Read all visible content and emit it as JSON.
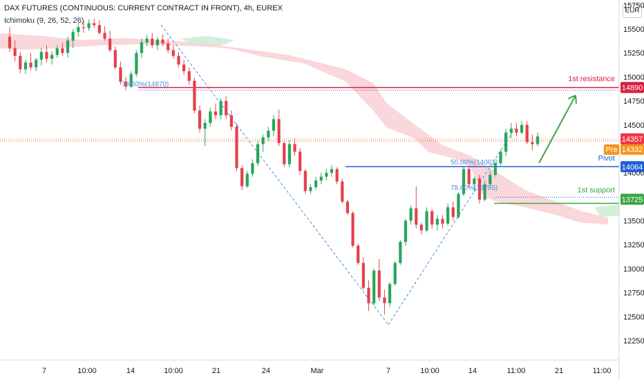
{
  "header": {
    "title": "DAX FUTURES (CONTINUOUS: CURRENT CONTRACT IN FRONT), 4h, EUREX",
    "indicator": "Ichimoku (9, 26, 52, 26)",
    "currency": "EUR"
  },
  "labels": {
    "resistance": "1st resistance",
    "pivot": "Pivot",
    "support": "1st support",
    "fib_top": "78.60%(14870)",
    "fib_mid": "50.00%(14061)",
    "fib_low": "78.60%(13785)",
    "pre": "Pre"
  },
  "colors": {
    "up": "#26a65b",
    "down": "#e5404c",
    "resistance": "#d81e3f",
    "pivot": "#1f5fd6",
    "support": "#3ca545",
    "dashed": "#4a8fe0",
    "cloud_red": "#f8c9cd",
    "cloud_green": "#c8ebd0",
    "price": "#f23645",
    "pre": "#f7931a"
  },
  "chart_data": {
    "type": "candlestick",
    "y_axis": {
      "ticks": [
        12250,
        12500,
        12750,
        13000,
        13250,
        13500,
        13750,
        14000,
        14250,
        14500,
        14750,
        15000,
        15250,
        15500,
        15750
      ],
      "ylim": [
        12130,
        15800
      ]
    },
    "x_axis": {
      "ticks": [
        "7",
        "10:00",
        "14",
        "10:00",
        "21",
        "24",
        "Mar",
        "7",
        "10:00",
        "14",
        "11:00",
        "21",
        "11:00"
      ]
    },
    "levels": [
      {
        "name": "1st resistance",
        "value": 14890,
        "label": "14890"
      },
      {
        "name": "Pivot",
        "value": 14064,
        "label": "14064"
      },
      {
        "name": "1st support",
        "value": 13725,
        "label": "13725"
      }
    ],
    "price_badges": [
      {
        "value": 14357,
        "label": "14357"
      },
      {
        "value": 14332,
        "label": "14332"
      }
    ],
    "fibonacci": [
      {
        "label": "78.60%(14870)",
        "value": 14870
      },
      {
        "label": "50.00%(14061)",
        "value": 14061
      },
      {
        "label": "78.60%(13785)",
        "value": 13785
      }
    ],
    "candles": [
      [
        15420,
        15520,
        15260,
        15300
      ],
      [
        15300,
        15380,
        15160,
        15220
      ],
      [
        15220,
        15260,
        15040,
        15080
      ],
      [
        15080,
        15180,
        15030,
        15150
      ],
      [
        15150,
        15250,
        15070,
        15100
      ],
      [
        15100,
        15200,
        15060,
        15180
      ],
      [
        15180,
        15300,
        15120,
        15260
      ],
      [
        15260,
        15330,
        15150,
        15190
      ],
      [
        15190,
        15270,
        15130,
        15230
      ],
      [
        15230,
        15330,
        15200,
        15300
      ],
      [
        15300,
        15360,
        15220,
        15250
      ],
      [
        15250,
        15420,
        15200,
        15380
      ],
      [
        15380,
        15500,
        15300,
        15470
      ],
      [
        15470,
        15560,
        15420,
        15520
      ],
      [
        15520,
        15580,
        15460,
        15510
      ],
      [
        15510,
        15600,
        15480,
        15560
      ],
      [
        15560,
        15610,
        15510,
        15540
      ],
      [
        15540,
        15590,
        15440,
        15460
      ],
      [
        15460,
        15530,
        15380,
        15400
      ],
      [
        15400,
        15480,
        15260,
        15280
      ],
      [
        15280,
        15320,
        15080,
        15100
      ],
      [
        15100,
        15160,
        14920,
        14950
      ],
      [
        14950,
        15000,
        14860,
        14900
      ],
      [
        14900,
        15060,
        14880,
        15030
      ],
      [
        15030,
        15280,
        15000,
        15250
      ],
      [
        15250,
        15400,
        15200,
        15360
      ],
      [
        15360,
        15440,
        15320,
        15400
      ],
      [
        15400,
        15460,
        15300,
        15330
      ],
      [
        15330,
        15420,
        15280,
        15390
      ],
      [
        15390,
        15440,
        15320,
        15350
      ],
      [
        15350,
        15400,
        15250,
        15280
      ],
      [
        15280,
        15330,
        15190,
        15220
      ],
      [
        15220,
        15260,
        15100,
        15130
      ],
      [
        15130,
        15180,
        15020,
        15060
      ],
      [
        15060,
        15100,
        14920,
        14960
      ],
      [
        14960,
        14990,
        14620,
        14650
      ],
      [
        14650,
        14700,
        14420,
        14460
      ],
      [
        14460,
        14560,
        14280,
        14520
      ],
      [
        14520,
        14680,
        14480,
        14640
      ],
      [
        14640,
        14720,
        14560,
        14600
      ],
      [
        14600,
        14780,
        14560,
        14750
      ],
      [
        14750,
        14800,
        14560,
        14600
      ],
      [
        14600,
        14650,
        14440,
        14480
      ],
      [
        14480,
        14520,
        14020,
        14050
      ],
      [
        14050,
        14080,
        13820,
        13860
      ],
      [
        13860,
        14020,
        13840,
        13990
      ],
      [
        13990,
        14140,
        13960,
        14100
      ],
      [
        14100,
        14330,
        14070,
        14300
      ],
      [
        14300,
        14400,
        14220,
        14370
      ],
      [
        14370,
        14480,
        14330,
        14440
      ],
      [
        14440,
        14600,
        14380,
        14560
      ],
      [
        14560,
        14660,
        14280,
        14310
      ],
      [
        14310,
        14330,
        14060,
        14090
      ],
      [
        14090,
        14340,
        14060,
        14300
      ],
      [
        14300,
        14360,
        14180,
        14220
      ],
      [
        14220,
        14260,
        13980,
        14020
      ],
      [
        14020,
        14040,
        13780,
        13810
      ],
      [
        13810,
        13880,
        13780,
        13850
      ],
      [
        13850,
        13960,
        13820,
        13920
      ],
      [
        13920,
        14000,
        13880,
        13960
      ],
      [
        13960,
        14040,
        13920,
        14000
      ],
      [
        14000,
        14080,
        13960,
        14040
      ],
      [
        14040,
        14060,
        13880,
        13910
      ],
      [
        13910,
        13940,
        13680,
        13700
      ],
      [
        13700,
        13720,
        13560,
        13580
      ],
      [
        13580,
        13600,
        13220,
        13240
      ],
      [
        13240,
        13260,
        13040,
        13060
      ],
      [
        13060,
        13120,
        12780,
        12800
      ],
      [
        12800,
        12880,
        12560,
        12640
      ],
      [
        12640,
        13000,
        12620,
        12980
      ],
      [
        12980,
        13100,
        12660,
        12700
      ],
      [
        12700,
        12780,
        12520,
        12640
      ],
      [
        12640,
        12860,
        12600,
        12840
      ],
      [
        12840,
        13080,
        12820,
        13060
      ],
      [
        13060,
        13300,
        13040,
        13280
      ],
      [
        13280,
        13520,
        13240,
        13500
      ],
      [
        13500,
        13660,
        13460,
        13630
      ],
      [
        13630,
        13860,
        13420,
        13460
      ],
      [
        13460,
        13480,
        13360,
        13400
      ],
      [
        13400,
        13640,
        13380,
        13600
      ],
      [
        13600,
        13620,
        13420,
        13460
      ],
      [
        13460,
        13560,
        13400,
        13520
      ],
      [
        13520,
        13560,
        13420,
        13470
      ],
      [
        13470,
        13680,
        13450,
        13640
      ],
      [
        13640,
        13700,
        13500,
        13540
      ],
      [
        13540,
        13800,
        13520,
        13780
      ],
      [
        13780,
        14060,
        13760,
        14040
      ],
      [
        14040,
        14080,
        13840,
        13880
      ],
      [
        13880,
        13960,
        13800,
        13940
      ],
      [
        13940,
        13980,
        13680,
        13720
      ],
      [
        13720,
        13920,
        13700,
        13880
      ],
      [
        13880,
        14020,
        13860,
        13980
      ],
      [
        13980,
        14120,
        13960,
        14100
      ],
      [
        14100,
        14240,
        14080,
        14220
      ],
      [
        14220,
        14460,
        14180,
        14420
      ],
      [
        14420,
        14520,
        14360,
        14460
      ],
      [
        14460,
        14520,
        14380,
        14420
      ],
      [
        14420,
        14540,
        14400,
        14500
      ],
      [
        14500,
        14540,
        14300,
        14320
      ],
      [
        14320,
        14400,
        14240,
        14300
      ],
      [
        14300,
        14420,
        14280,
        14380
      ]
    ]
  }
}
